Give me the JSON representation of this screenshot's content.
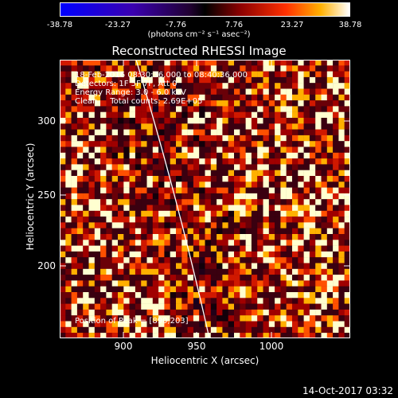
{
  "colorbar": {
    "ticks": [
      "-38.78",
      "-23.27",
      "-7.76",
      "7.76",
      "23.27",
      "38.78"
    ],
    "units": "(photons cm⁻² s⁻¹ asec⁻²)"
  },
  "title": "Reconstructed RHESSI Image",
  "info": {
    "line1": "18-Feb-2016 08:30:36.000 to 08:40:36.000",
    "line2": "Detectors: 1F 5F 7F, Att 0",
    "line3": "Energy Range: 3.0 - 6.0 keV",
    "line4": "Clean     Total counts: 2.69E+05",
    "peak": "Position of Peak = [890,203]"
  },
  "axes": {
    "xlabel": "Heliocentric X (arcsec)",
    "ylabel": "Heliocentric Y (arcsec)",
    "xticks": [
      "900",
      "950",
      "1000"
    ],
    "yticks": [
      "300",
      "250",
      "200"
    ]
  },
  "timestamp": "14-Oct-2017 03:32"
}
